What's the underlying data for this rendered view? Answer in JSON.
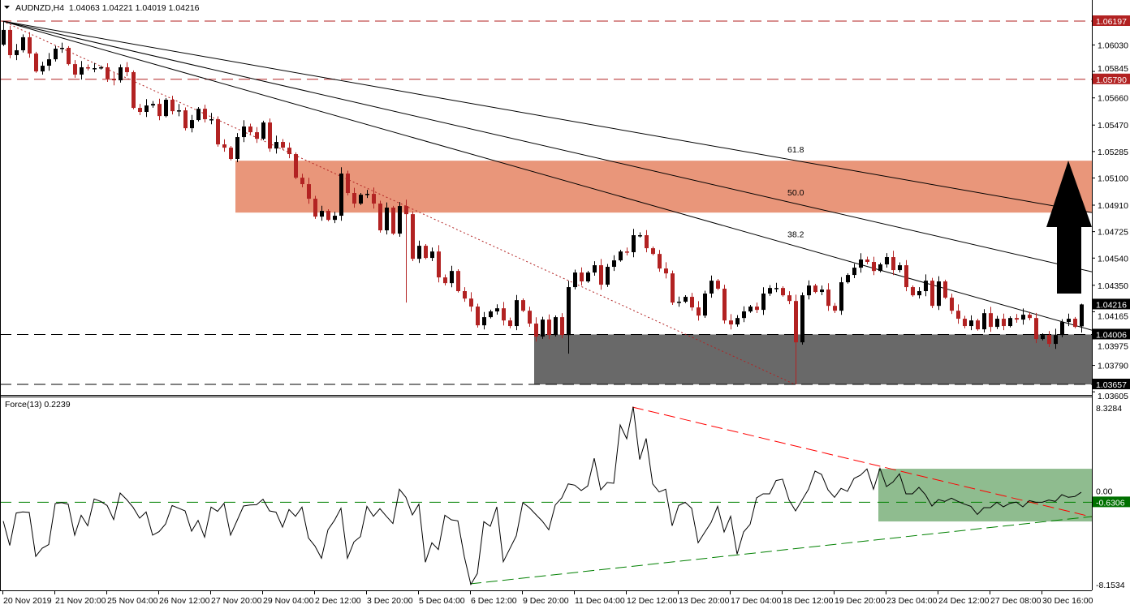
{
  "header": {
    "symbol_info": "AUDNZD,H4  1.04063 1.04221 1.04019 1.04216"
  },
  "indicator": {
    "label": "Force(13) 0.2239"
  },
  "chart_data": [
    {
      "type": "candlestick",
      "symbol": "AUDNZD",
      "timeframe": "H4",
      "last_bar": {
        "open": 1.04063,
        "high": 1.04221,
        "low": 1.04019,
        "close": 1.04216
      },
      "first_open": 1.06032,
      "closes": [
        1.06135,
        1.05959,
        1.05993,
        1.06084,
        1.0597,
        1.05845,
        1.05885,
        1.0593,
        1.06004,
        1.0601,
        1.05896,
        1.05823,
        1.05874,
        1.05868,
        1.05868,
        1.05874,
        1.05794,
        1.05783,
        1.05874,
        1.0584,
        1.0559,
        1.05562,
        1.05607,
        1.05618,
        1.05533,
        1.05647,
        1.05567,
        1.05573,
        1.05448,
        1.05505,
        1.05584,
        1.05511,
        1.05511,
        1.05335,
        1.05312,
        1.05233,
        1.05386,
        1.0546,
        1.0542,
        1.05374,
        1.05488,
        1.05306,
        1.05352,
        1.05312,
        1.05267,
        1.05102,
        1.05057,
        1.04955,
        1.0483,
        1.0487,
        1.04807,
        1.04836,
        1.05131,
        1.04995,
        1.04921,
        1.04983,
        1.04989,
        1.04921,
        1.04734,
        1.04893,
        1.04711,
        1.04904,
        1.04847,
        1.04535,
        1.04626,
        1.04541,
        1.04586,
        1.04405,
        1.04365,
        1.0445,
        1.04309,
        1.04257,
        1.04201,
        1.0407,
        1.04127,
        1.04167,
        1.04189,
        1.04104,
        1.04065,
        1.04246,
        1.04172,
        1.04082,
        1.03991,
        1.0411,
        1.04002,
        1.04127,
        1.04002,
        1.04337,
        1.04439,
        1.04377,
        1.04439,
        1.0449,
        1.04354,
        1.04479,
        1.04524,
        1.04586,
        1.04581,
        1.047,
        1.047,
        1.04609,
        1.04569,
        1.04467,
        1.04433,
        1.04229,
        1.04235,
        1.04269,
        1.04195,
        1.04138,
        1.04292,
        1.04382,
        1.04326,
        1.04104,
        1.04076,
        1.04121,
        1.04167,
        1.04201,
        1.04178,
        1.04292,
        1.04331,
        1.04331,
        1.0428,
        1.0424,
        1.03951,
        1.0428,
        1.04348,
        1.04303,
        1.0432,
        1.04206,
        1.04172,
        1.04371,
        1.04422,
        1.04473,
        1.0453,
        1.04513,
        1.0445,
        1.04496,
        1.04547,
        1.04456,
        1.0449,
        1.04337,
        1.0428,
        1.04309,
        1.04382,
        1.04206,
        1.04377,
        1.04263,
        1.04172,
        1.04116,
        1.04065,
        1.04104,
        1.04042,
        1.04155,
        1.04059,
        1.04116,
        1.04065,
        1.04121,
        1.0411,
        1.04144,
        1.04121,
        1.03974,
        1.04002,
        1.0394,
        1.04002,
        1.04093,
        1.04116,
        1.04059,
        1.04216
      ],
      "wick_extremes": {
        "0": {
          "high": 1.06197
        },
        "62": {
          "low": 1.04229
        },
        "87": {
          "low": 1.03872
        },
        "122": {
          "low": 1.03657
        }
      },
      "price_ticks": [
        "1.06030",
        "1.05845",
        "1.05660",
        "1.05470",
        "1.05285",
        "1.05100",
        "1.04910",
        "1.04725",
        "1.04540",
        "1.04350",
        "1.04165",
        "1.03975",
        "1.03790",
        "1.03605"
      ],
      "time_labels": [
        "20 Nov 2019",
        "21 Nov 20:00",
        "25 Nov 04:00",
        "26 Nov 12:00",
        "27 Nov 20:00",
        "29 Nov 04:00",
        "2 Dec 12:00",
        "3 Dec 20:00",
        "5 Dec 04:00",
        "6 Dec 12:00",
        "9 Dec 20:00",
        "11 Dec 04:00",
        "12 Dec 12:00",
        "13 Dec 20:00",
        "17 Dec 04:00",
        "18 Dec 12:00",
        "19 Dec 20:00",
        "23 Dec 04:00",
        "24 Dec 12:00",
        "27 Dec 08:00",
        "30 Dec 16:00"
      ],
      "horizontal_levels": [
        {
          "price": 1.06197,
          "label": "1.06197",
          "color": "#b22222"
        },
        {
          "price": 1.0579,
          "label": "1.05790",
          "color": "#b22222"
        },
        {
          "price": 1.04006,
          "label": "1.04006",
          "color": "#000000"
        },
        {
          "price": 1.03657,
          "label": "1.03657",
          "color": "#000000"
        }
      ],
      "current_price": {
        "price": 1.04216,
        "label": "1.04216"
      },
      "resistance_zone": {
        "top": 1.05221,
        "bottom": 1.04858,
        "color": "#e9967a"
      },
      "support_zone": {
        "top": 1.04006,
        "bottom": 1.03657,
        "color": "#696969"
      },
      "fib_fan": {
        "origin_price": 1.06197,
        "lines": [
          {
            "label": "61.8",
            "end_price": 1.04858
          },
          {
            "label": "50.0",
            "end_price": 1.04444
          },
          {
            "label": "38.2",
            "end_price": 1.04036
          }
        ]
      },
      "trendline": {
        "start_price": 1.06197,
        "end_price": 1.03657,
        "color": "#b22222",
        "style": "dotted"
      },
      "annotation_arrow": "up",
      "colors": {
        "bull": "#000000",
        "bear": "#b22222"
      }
    },
    {
      "type": "line",
      "name": "Force(13)",
      "ylim": [
        -8.1534,
        8.3284
      ],
      "ticks": [
        "8.3284",
        "0.00",
        "-8.1534"
      ],
      "level": {
        "value": -0.6306,
        "label": "-0.6306",
        "color": "#008000"
      },
      "values": [
        -2.24,
        -4.32,
        -1.55,
        -1.46,
        -1.5,
        -5.25,
        -4.55,
        -4.25,
        -0.74,
        -0.67,
        -0.79,
        -3.44,
        -1.74,
        -2.64,
        -0.35,
        -0.56,
        -0.91,
        -2.11,
        0.16,
        -0.4,
        -1.07,
        -1.99,
        -1.46,
        -3.44,
        -3.14,
        -2.48,
        -0.91,
        -1.14,
        -1.37,
        -3.1,
        -2.18,
        -3.61,
        -1.04,
        -1.41,
        -0.72,
        -3.44,
        -2.2,
        -0.95,
        -0.86,
        -0.84,
        -0.37,
        -1.37,
        -1.48,
        -2.75,
        -1.25,
        -1.83,
        -1.04,
        -3.68,
        -4.37,
        -5.41,
        -2.98,
        -2.18,
        -1.14,
        -5.41,
        -4.02,
        -3.56,
        -0.98,
        -1.83,
        -1.18,
        -1.83,
        -2.45,
        0.48,
        -0.21,
        -1.71,
        -0.79,
        -5.75,
        -4.09,
        -4.67,
        -1.74,
        -2.13,
        -2.22,
        -5.29,
        -7.65,
        -6.72,
        -2.29,
        -2.68,
        -1.02,
        -5.71,
        -4.6,
        -3.49,
        -0.67,
        -1.09,
        -1.67,
        -2.24,
        -2.98,
        -0.86,
        -0.26,
        0.94,
        0.83,
        0.37,
        0.76,
        3.13,
        0.43,
        1.06,
        0.99,
        5.97,
        4.8,
        7.52,
        3.02,
        4.82,
        0.94,
        0.25,
        0.48,
        -2.64,
        -0.91,
        -0.63,
        -1.14,
        -4.09,
        -3.21,
        -2.36,
        -0.98,
        -3.17,
        -1.83,
        -5.06,
        -3.17,
        -2.52,
        -0.26,
        0.09,
        0.09,
        1.22,
        1.34,
        -0.44,
        -1.37,
        -0.44,
        0.48,
        2.03,
        1.75,
        0.43,
        -0.21,
        0.55,
        0.3,
        1.4,
        1.68,
        2.21,
        0.48,
        2.26,
        0.71,
        1.1,
        1.8,
        0.09,
        0.09,
        0.64,
        0.02,
        -0.95,
        -0.4,
        -0.56,
        -0.28,
        -0.56,
        -0.79,
        -0.98,
        -1.67,
        -1.09,
        -1.09,
        -0.63,
        -1.02,
        -0.72,
        -0.61,
        -1.02,
        -0.49,
        -0.63,
        -0.63,
        -0.44,
        -0.56,
        0.02,
        -0.21,
        -0.14,
        0.22
      ],
      "resistance_trendline": {
        "start_value": 7.5,
        "end_value": -1.88,
        "color": "#ff0000"
      },
      "support_trendline": {
        "start_value": -7.6,
        "end_value": -1.85,
        "color": "#008000"
      },
      "consolidation_zone": {
        "top": 2.23,
        "bottom": -2.27,
        "color": "#8fbc8f"
      }
    }
  ]
}
